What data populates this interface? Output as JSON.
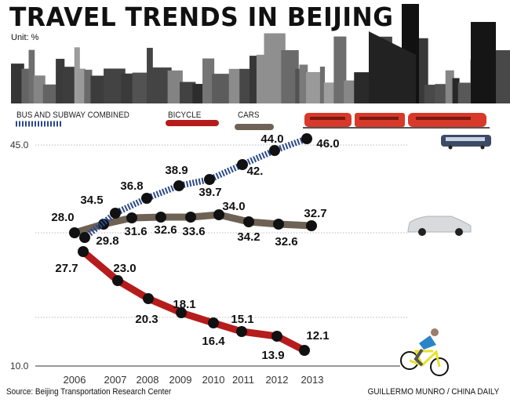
{
  "header": {
    "title": "TRAVEL TRENDS IN BEIJING",
    "unit": "Unit: %"
  },
  "footer": {
    "source": "Source: Beijing Transportation Research Center",
    "credit": "GUILLERMO MUNRO / CHINA DAILY"
  },
  "chart_data": {
    "type": "line",
    "title": "TRAVEL TRENDS IN BEIJING",
    "ylabel": "Unit: %",
    "ylim": [
      10.0,
      45.0
    ],
    "ytick_labels": [
      "45.0",
      "10.0"
    ],
    "categories": [
      "2006",
      "2007",
      "2008",
      "2009",
      "2010",
      "2011",
      "2012",
      "2013"
    ],
    "series": [
      {
        "name": "BUS AND SUBWAY COMBINED",
        "color": "#2b4a8a",
        "labels": [
          "29.8",
          "34.5",
          "36.8",
          "38.9",
          "39.7",
          "42.",
          "44.0",
          "46.0"
        ],
        "values": [
          29.8,
          34.5,
          36.8,
          38.9,
          39.7,
          42,
          44.0,
          46.0
        ]
      },
      {
        "name": "BICYCLE",
        "color": "#b51c1c",
        "labels": [
          "27.7",
          "23.0",
          "20.3",
          "18.1",
          "16.4",
          "15.1",
          "13.9",
          "12.1"
        ],
        "values": [
          27.7,
          23.0,
          20.3,
          18.1,
          16.4,
          15.1,
          13.9,
          12.1
        ]
      },
      {
        "name": "CARS",
        "color": "#6e6255",
        "labels": [
          "28.0",
          "31.6",
          "32.6",
          "33.6",
          "34.0",
          "34.2",
          "32.6",
          "32.7"
        ],
        "values": [
          28.0,
          31.6,
          32.6,
          33.6,
          34.0,
          34.2,
          32.6,
          32.7
        ]
      }
    ],
    "grid": true,
    "legend": "top"
  }
}
